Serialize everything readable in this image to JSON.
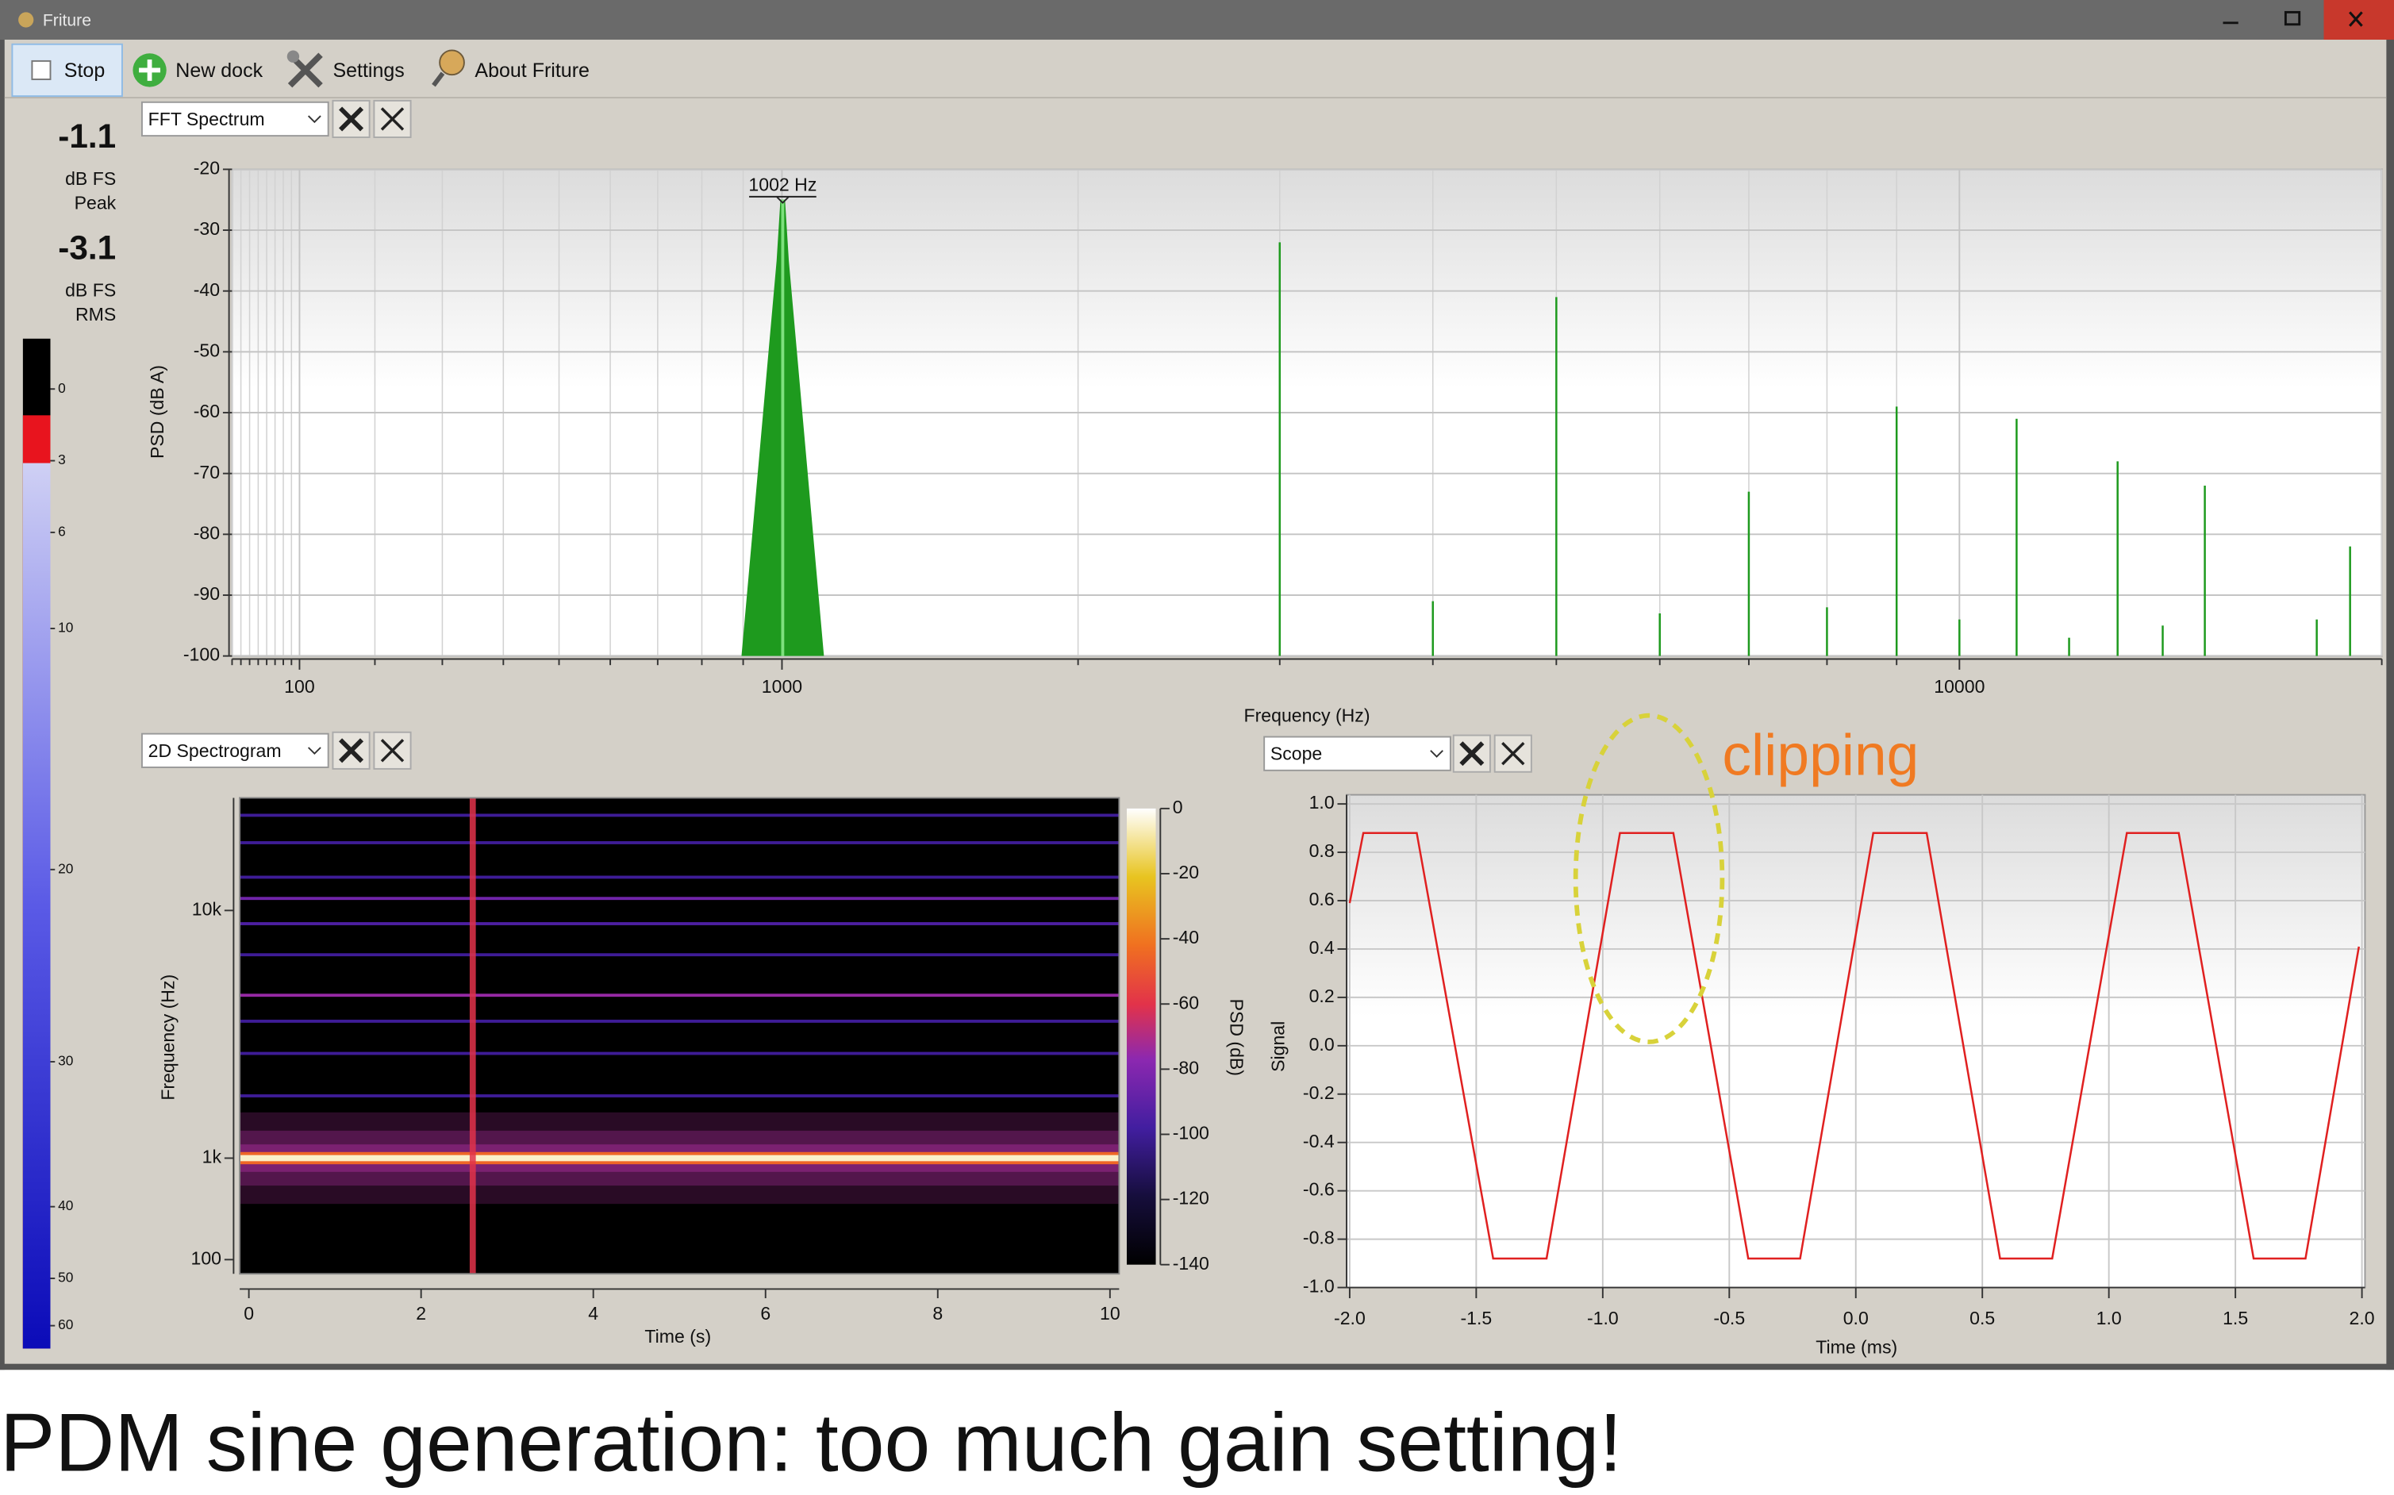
{
  "window": {
    "title": "Friture"
  },
  "toolbar": {
    "items": [
      "Stop",
      "New dock",
      "Settings",
      "About Friture"
    ]
  },
  "level_meter": {
    "peak": -1.1,
    "peak_unit": "dB FS",
    "peak_label": "Peak",
    "rms": -3.1,
    "rms_unit": "dB FS",
    "rms_label": "RMS",
    "ticks": [
      0,
      3,
      6,
      10,
      20,
      30,
      40,
      50,
      60
    ]
  },
  "fft": {
    "widget": "FFT Spectrum",
    "xlabel": "Frequency (Hz)",
    "ylabel": "PSD (dB A)",
    "xscale": "mel",
    "xlim": [
      20,
      20000
    ],
    "xticks": [
      100,
      1000,
      10000
    ],
    "xminorticks": [
      20,
      30,
      40,
      50,
      60,
      70,
      80,
      90,
      200,
      300,
      400,
      500,
      600,
      700,
      800,
      900,
      2000,
      3000,
      4000,
      5000,
      6000,
      7000,
      8000,
      9000,
      20000
    ],
    "ylim": [
      -100,
      -20
    ],
    "yticks": [
      -20,
      -30,
      -40,
      -50,
      -60,
      -70,
      -80,
      -90,
      -100
    ],
    "grid": true,
    "color": "#1e9a1e",
    "peak_label": "1002 Hz",
    "peaks": {
      "x": [
        1002,
        3000,
        4000,
        5000,
        6000,
        7000,
        8000,
        9000,
        10000,
        11000,
        12000,
        13000,
        14000,
        15000,
        18000,
        19000
      ],
      "values": [
        -25,
        -32,
        -91,
        -41,
        -93,
        -73,
        -92,
        -59,
        -94,
        -61,
        -97,
        -68,
        -95,
        -72,
        -94,
        -82
      ]
    }
  },
  "spectrogram": {
    "widget": "2D Spectrogram",
    "xlabel": "Time (s)",
    "ylabel": "Frequency (Hz)",
    "xlim": [
      0,
      10
    ],
    "xticks": [
      0,
      2,
      4,
      6,
      8,
      10
    ],
    "yscale": "mel",
    "ylim": [
      20,
      24000
    ],
    "yticks": [
      100,
      {
        "value": 1000,
        "label": "1k"
      },
      {
        "value": 10000,
        "label": "10k"
      }
    ],
    "colorbar_label": "PSD (dB)",
    "clim": [
      -140,
      0
    ],
    "colorbar_ticks": [
      0,
      -20,
      -40,
      -60,
      -80,
      -100,
      -120,
      -140
    ],
    "bands": {
      "freqs": [
        1000,
        2000,
        3000,
        4000,
        5000,
        7000,
        9000,
        11000,
        13000,
        17000,
        21000
      ],
      "levels": [
        -5,
        -100,
        -100,
        -100,
        -75,
        -100,
        -95,
        -85,
        -100,
        -100,
        -100
      ]
    },
    "glitch": {
      "time": 2.6,
      "level": -60
    }
  },
  "scope": {
    "widget": "Scope",
    "xlabel": "Time (ms)",
    "ylabel": "Signal",
    "xlim": [
      -2,
      2
    ],
    "xticks": [
      {
        "value": -2,
        "label": "-2.0"
      },
      -1.5,
      {
        "value": -1,
        "label": "-1.0"
      },
      -0.5,
      {
        "value": 0,
        "label": "0.0"
      },
      0.5,
      {
        "value": 1,
        "label": "1.0"
      },
      1.5,
      {
        "value": 2,
        "label": "2.0"
      }
    ],
    "ylim": [
      -1,
      1
    ],
    "yticks": [
      {
        "value": 1,
        "label": "1.0"
      },
      0.8,
      0.6,
      0.4,
      0.2,
      {
        "value": 0,
        "label": "0.0"
      },
      -0.2,
      -0.4,
      -0.6,
      -0.8,
      {
        "value": -1,
        "label": "-1.0"
      }
    ],
    "grid": true,
    "color": "#e02020",
    "x": [
      -2.0,
      -1.946,
      -1.735,
      -1.433,
      -1.222,
      -0.932,
      -0.721,
      -0.425,
      -0.22,
      0.069,
      0.28,
      0.57,
      0.776,
      1.071,
      1.276,
      1.572,
      1.777,
      1.988
    ],
    "values": [
      0.59,
      0.88,
      0.88,
      -0.88,
      -0.88,
      0.88,
      0.88,
      -0.88,
      -0.88,
      0.88,
      0.88,
      -0.88,
      -0.88,
      0.88,
      0.88,
      -0.88,
      -0.88,
      0.41
    ]
  },
  "annotation": {
    "text": "clipping",
    "color": "#f07a22"
  },
  "caption": "PDM sine generation: too much gain setting!"
}
